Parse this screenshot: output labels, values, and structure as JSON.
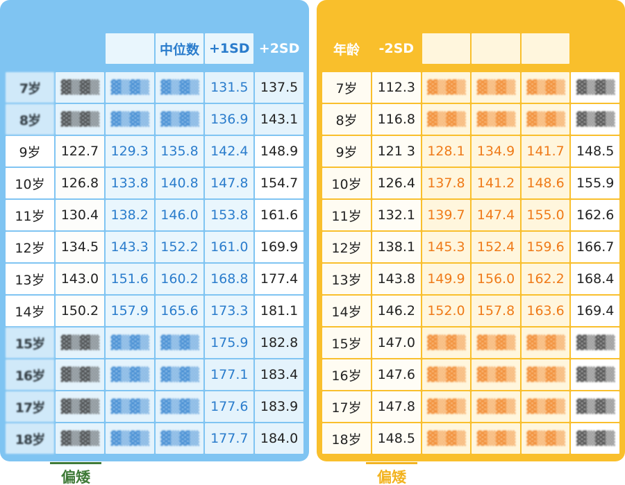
{
  "left_table": {
    "headers": [
      "",
      "",
      "",
      "中位数",
      "+1SD",
      "+2SD"
    ],
    "rows": [
      {
        "age": "7岁",
        "values": [
          "",
          "",
          "",
          "131.5",
          "137.5"
        ],
        "smudged": true
      },
      {
        "age": "8岁",
        "values": [
          "",
          "",
          "",
          "136.9",
          "143.1"
        ],
        "smudged": true
      },
      {
        "age": "9岁",
        "values": [
          "122.7",
          "129.3",
          "135.8",
          "142.4",
          "148.9"
        ],
        "smudged": false
      },
      {
        "age": "10岁",
        "values": [
          "126.8",
          "133.8",
          "140.8",
          "147.8",
          "154.7"
        ],
        "smudged": false
      },
      {
        "age": "11岁",
        "values": [
          "130.4",
          "138.2",
          "146.0",
          "153.8",
          "161.6"
        ],
        "smudged": false
      },
      {
        "age": "12岁",
        "values": [
          "134.5",
          "143.3",
          "152.2",
          "161.0",
          "169.9"
        ],
        "smudged": false
      },
      {
        "age": "13岁",
        "values": [
          "143.0",
          "151.6",
          "160.2",
          "168.8",
          "177.4"
        ],
        "smudged": false
      },
      {
        "age": "14岁",
        "values": [
          "150.2",
          "157.9",
          "165.6",
          "173.3",
          "181.1"
        ],
        "smudged": false
      },
      {
        "age": "15岁",
        "values": [
          "",
          "",
          "",
          "175.9",
          "182.8"
        ],
        "smudged": true
      },
      {
        "age": "16岁",
        "values": [
          "",
          "",
          "",
          "177.1",
          "183.4"
        ],
        "smudged": true
      },
      {
        "age": "17岁",
        "values": [
          "",
          "",
          "",
          "177.6",
          "183.9"
        ],
        "smudged": true
      },
      {
        "age": "18岁",
        "values": [
          "",
          "",
          "",
          "177.7",
          "184.0"
        ],
        "smudged": true
      }
    ],
    "footer_tag": "偏矮"
  },
  "right_table": {
    "headers": [
      "年龄",
      "-2SD",
      "",
      "",
      "",
      ""
    ],
    "rows": [
      {
        "age": "7岁",
        "values": [
          "112.3",
          "",
          "",
          "",
          ""
        ],
        "smudged": true
      },
      {
        "age": "8岁",
        "values": [
          "116.8",
          "",
          "",
          "",
          ""
        ],
        "smudged": true
      },
      {
        "age": "9岁",
        "values": [
          "121 3",
          "128.1",
          "134.9",
          "141.7",
          "148.5"
        ],
        "smudged": false
      },
      {
        "age": "10岁",
        "values": [
          "126.4",
          "137.8",
          "141.2",
          "148.6",
          "155.9"
        ],
        "smudged": false
      },
      {
        "age": "11岁",
        "values": [
          "132.1",
          "139.7",
          "147.4",
          "155.0",
          "162.6"
        ],
        "smudged": false
      },
      {
        "age": "12岁",
        "values": [
          "138.1",
          "145.3",
          "152.4",
          "159.6",
          "166.7"
        ],
        "smudged": false
      },
      {
        "age": "13岁",
        "values": [
          "143.8",
          "149.9",
          "156.0",
          "162.2",
          "168.4"
        ],
        "smudged": false
      },
      {
        "age": "14岁",
        "values": [
          "146.2",
          "152.0",
          "157.8",
          "163.6",
          "169.4"
        ],
        "smudged": false
      },
      {
        "age": "15岁",
        "values": [
          "147.0",
          "",
          "",
          "",
          ""
        ],
        "smudged": true
      },
      {
        "age": "16岁",
        "values": [
          "147.6",
          "",
          "",
          "",
          ""
        ],
        "smudged": true
      },
      {
        "age": "17岁",
        "values": [
          "147.8",
          "",
          "",
          "",
          ""
        ],
        "smudged": true
      },
      {
        "age": "18岁",
        "values": [
          "148.5",
          "",
          "",
          "",
          ""
        ],
        "smudged": true
      }
    ],
    "footer_tag": "偏矮"
  },
  "colors": {
    "left_panel": "#7fc4f2",
    "right_panel": "#f9bf2c",
    "left_accent_text": "#2a7ccc",
    "right_accent_text": "#ef7a18",
    "left_tag": "#3f7a38",
    "right_tag": "#f2b320"
  }
}
